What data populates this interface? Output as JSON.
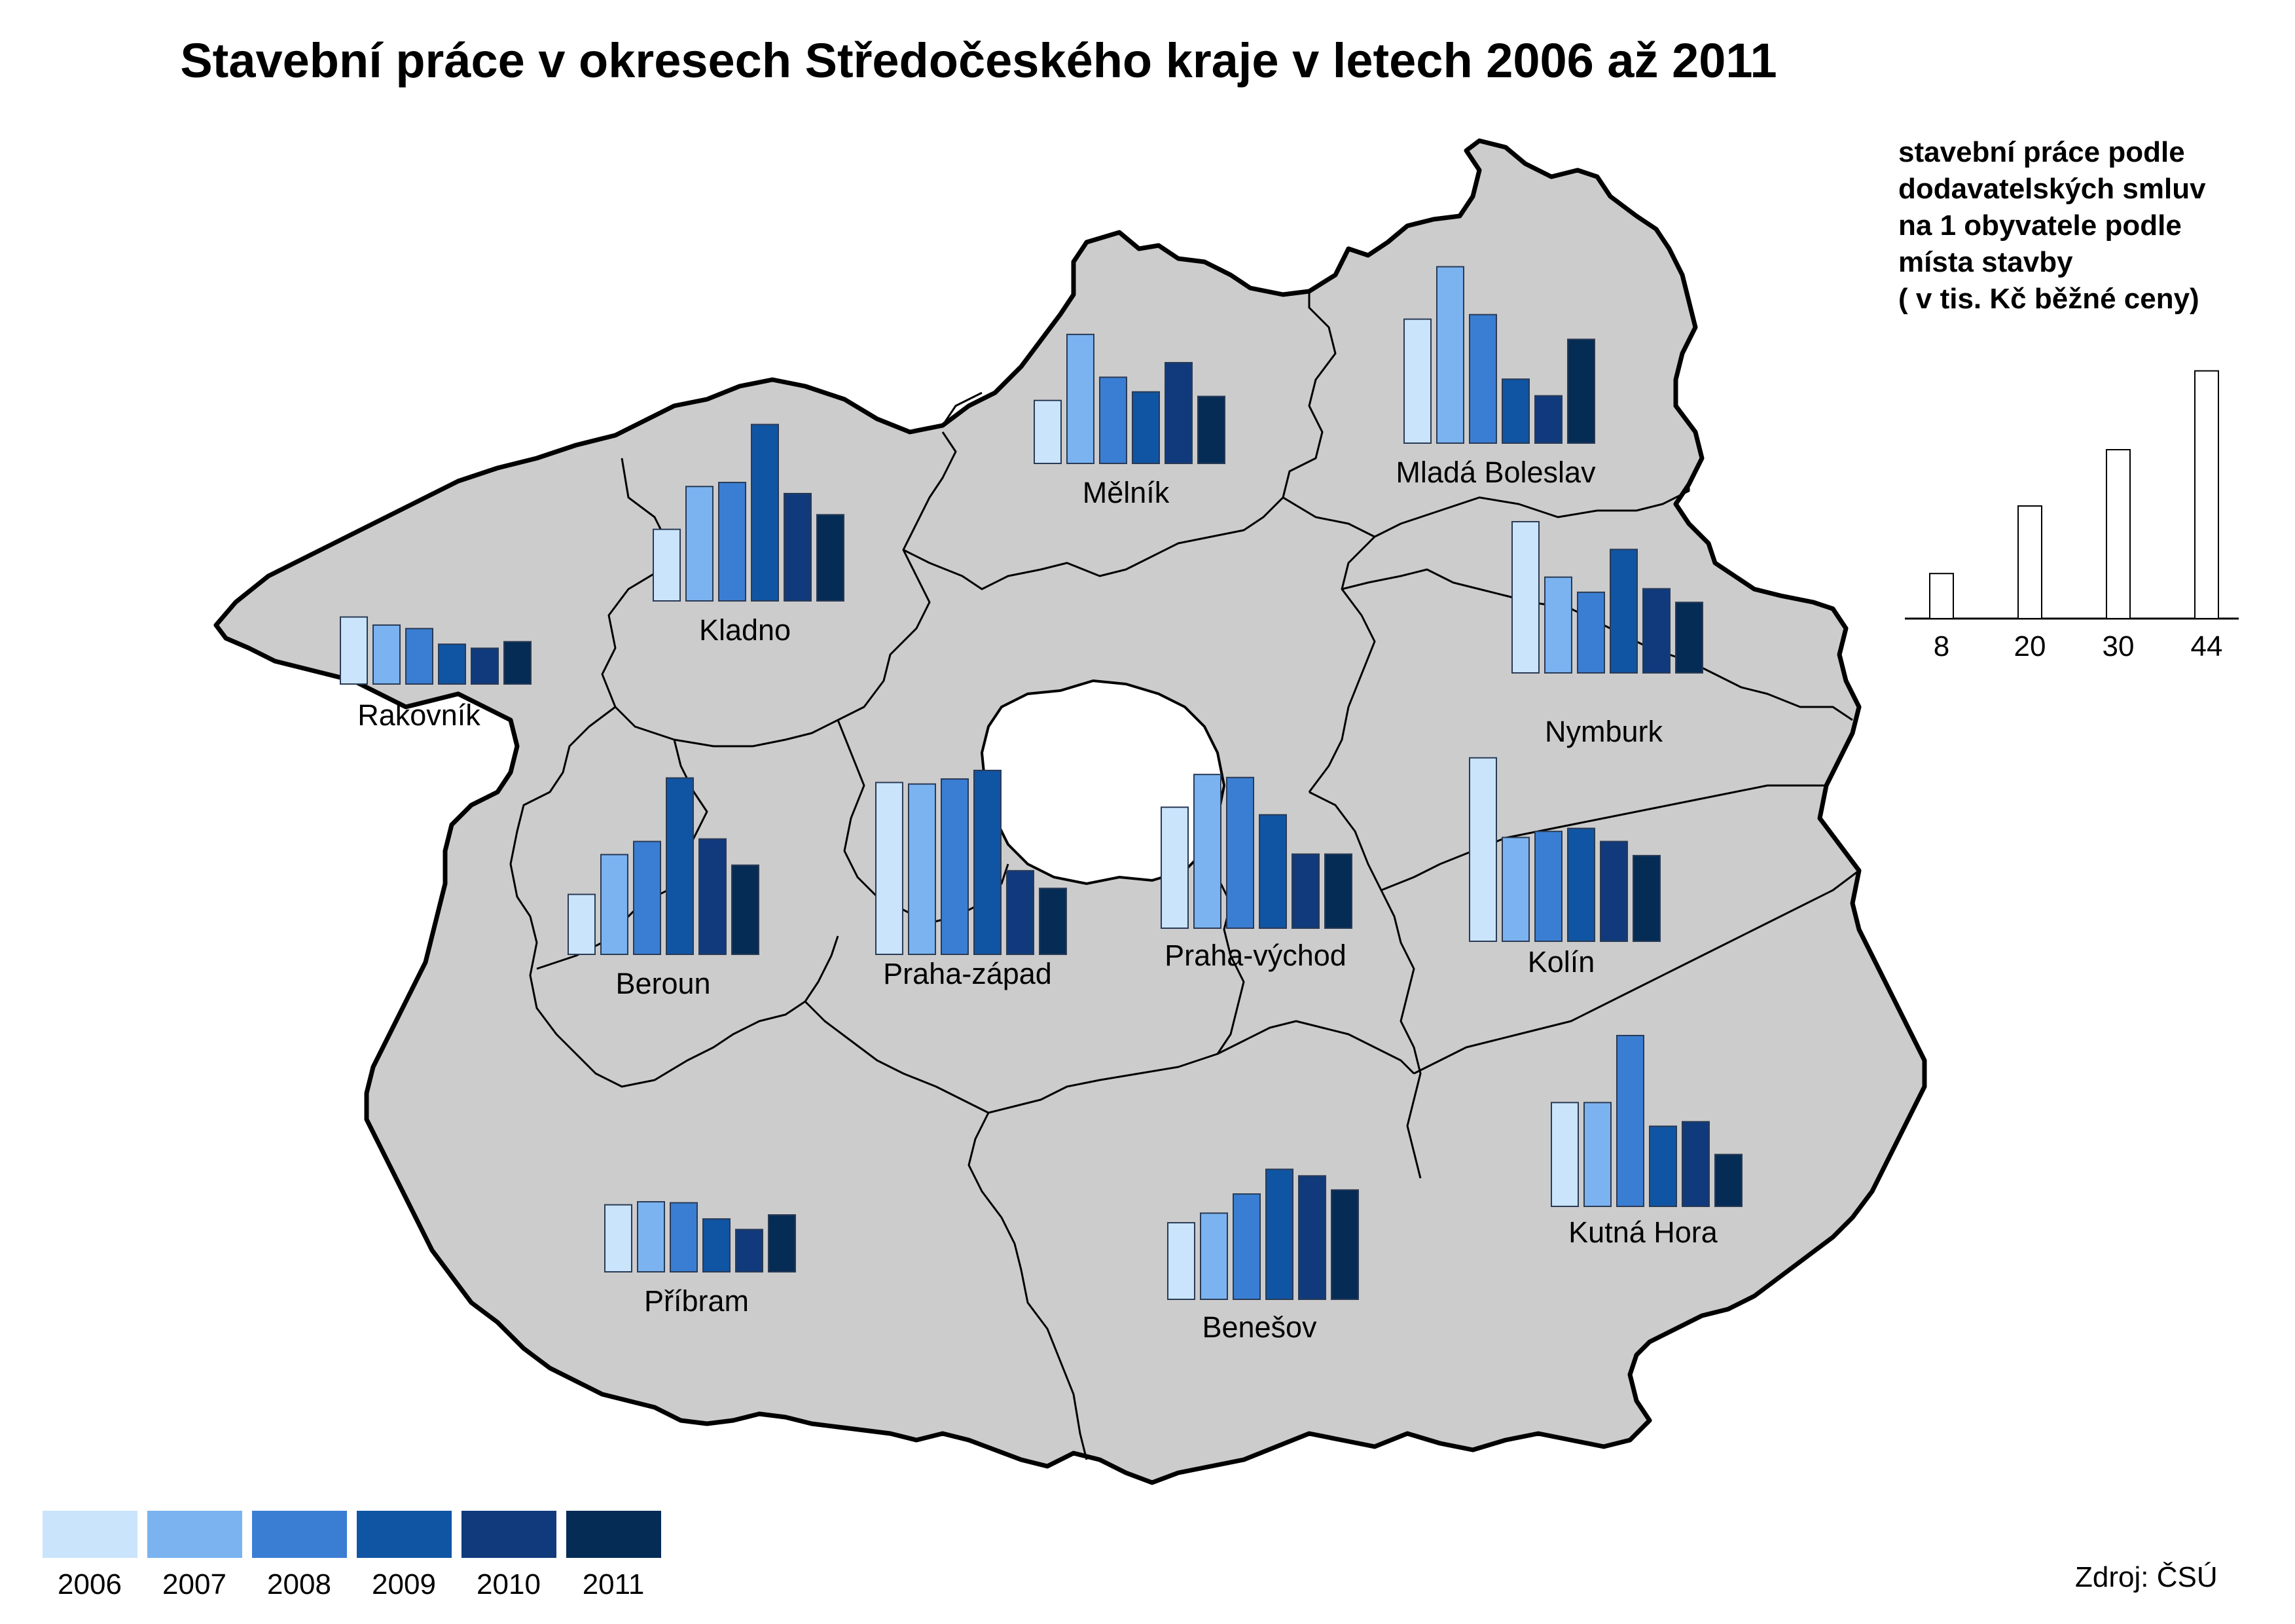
{
  "title": "Stavební práce v okresech Středočeského kraje v letech 2006 až 2011",
  "legend_title": "stavební práce podle\ndodavatelských smluv\nna 1 obyvatele podle\nmísta stavby\n( v tis. Kč běžné ceny)",
  "source": "Zdroj: ČSÚ",
  "colors": {
    "map_fill": "#cccccc",
    "years": [
      "#c9e4fb",
      "#7ab3f0",
      "#3a7ed3",
      "#1055a3",
      "#103a7c",
      "#042c55"
    ]
  },
  "chart_data": {
    "type": "bar",
    "categories": [
      "2006",
      "2007",
      "2008",
      "2009",
      "2010",
      "2011"
    ],
    "scale_reference_values": [
      8,
      20,
      30,
      44
    ],
    "series": [
      {
        "name": "Rakovník",
        "values": [
          13.3,
          11.7,
          11.0,
          7.9,
          7.1,
          8.4
        ]
      },
      {
        "name": "Kladno",
        "values": [
          14.2,
          22.7,
          23.5,
          35.0,
          21.3,
          17.1
        ]
      },
      {
        "name": "Mělník",
        "values": [
          12.5,
          25.6,
          17.1,
          14.2,
          20.0,
          13.3
        ]
      },
      {
        "name": "Mladá Boleslav",
        "values": [
          24.6,
          35.0,
          25.5,
          12.7,
          9.4,
          20.6
        ]
      },
      {
        "name": "Nymburk",
        "values": [
          30.0,
          19.0,
          16.0,
          24.5,
          16.7,
          14.0
        ]
      },
      {
        "name": "Beroun",
        "values": [
          11.9,
          19.8,
          22.4,
          35.0,
          22.9,
          17.7
        ]
      },
      {
        "name": "Praha-západ",
        "values": [
          34.1,
          33.8,
          34.8,
          36.5,
          16.6,
          13.1
        ]
      },
      {
        "name": "Praha-východ",
        "values": [
          24.0,
          30.5,
          29.9,
          22.5,
          14.7,
          14.7
        ]
      },
      {
        "name": "Kolín",
        "values": [
          36.4,
          20.6,
          21.8,
          22.4,
          19.8,
          17.0
        ]
      },
      {
        "name": "Kutná Hora",
        "values": [
          20.6,
          20.6,
          33.9,
          15.9,
          16.8,
          10.3
        ]
      },
      {
        "name": "Příbram",
        "values": [
          13.3,
          13.9,
          13.7,
          10.5,
          8.4,
          11.3
        ]
      },
      {
        "name": "Benešov",
        "values": [
          15.2,
          17.1,
          20.9,
          25.8,
          24.5,
          21.7
        ]
      }
    ]
  }
}
